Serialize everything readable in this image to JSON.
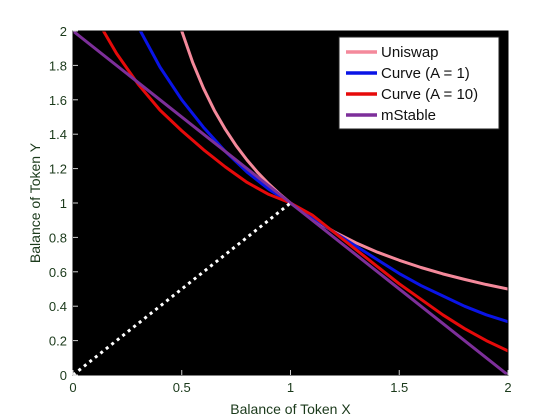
{
  "chart_data": {
    "type": "line",
    "xlabel": "Balance of Token X",
    "ylabel": "Balance of Token Y",
    "xlim": [
      0,
      2
    ],
    "ylim": [
      0,
      2
    ],
    "xticks": [
      "0",
      "0.5",
      "1",
      "1.5",
      "2"
    ],
    "yticks": [
      "0",
      "0.2",
      "0.4",
      "0.6",
      "0.8",
      "1",
      "1.2",
      "1.4",
      "1.6",
      "1.8",
      "2"
    ],
    "grid": false,
    "legend_position": "top-right",
    "background": "#000000",
    "series": [
      {
        "name": "Uniswap",
        "color": "#f4899b",
        "x": [
          0.5,
          0.55,
          0.6,
          0.65,
          0.7,
          0.75,
          0.8,
          0.85,
          0.9,
          0.95,
          1.0,
          1.1,
          1.2,
          1.3,
          1.4,
          1.5,
          1.6,
          1.7,
          1.8,
          1.9,
          2.0
        ],
        "y": [
          2.0,
          1.818,
          1.667,
          1.538,
          1.429,
          1.333,
          1.25,
          1.176,
          1.111,
          1.053,
          1.0,
          0.909,
          0.833,
          0.769,
          0.714,
          0.667,
          0.625,
          0.588,
          0.556,
          0.526,
          0.5
        ]
      },
      {
        "name": "Curve (A = 1)",
        "color": "#0a14e6",
        "x": [
          0.31,
          0.4,
          0.5,
          0.6,
          0.7,
          0.8,
          0.9,
          1.0,
          1.1,
          1.2,
          1.3,
          1.4,
          1.5,
          1.6,
          1.7,
          1.8,
          1.9,
          2.0
        ],
        "y": [
          2.0,
          1.79,
          1.6,
          1.44,
          1.3,
          1.18,
          1.08,
          1.0,
          0.92,
          0.83,
          0.75,
          0.67,
          0.59,
          0.52,
          0.46,
          0.4,
          0.35,
          0.31
        ]
      },
      {
        "name": "Curve (A = 10)",
        "color": "#e60a0a",
        "x": [
          0.14,
          0.2,
          0.3,
          0.4,
          0.5,
          0.6,
          0.7,
          0.8,
          0.9,
          1.0,
          1.1,
          1.2,
          1.3,
          1.4,
          1.5,
          1.6,
          1.7,
          1.8,
          1.9,
          2.0
        ],
        "y": [
          2.0,
          1.87,
          1.69,
          1.54,
          1.42,
          1.31,
          1.21,
          1.12,
          1.05,
          1.0,
          0.93,
          0.83,
          0.73,
          0.63,
          0.53,
          0.44,
          0.35,
          0.27,
          0.2,
          0.14
        ]
      },
      {
        "name": "mStable",
        "color": "#7d2f9a",
        "x": [
          0.0,
          1.0,
          2.0
        ],
        "y": [
          2.0,
          1.0,
          0.0
        ]
      }
    ],
    "reference_line": {
      "style": "dotted",
      "color": "#ffffff",
      "x": [
        0.0,
        1.0
      ],
      "y": [
        0.0,
        1.0
      ]
    }
  }
}
